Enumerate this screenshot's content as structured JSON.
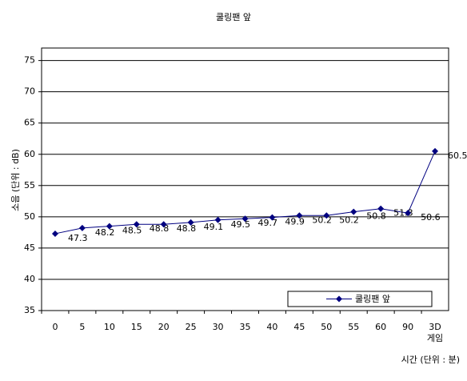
{
  "chart_data": {
    "type": "line",
    "title": "쿨링팬 앞",
    "ylabel": "소음 (단위 : dB)",
    "xlabel": "시간 (단위 : 분)",
    "categories": [
      "0",
      "5",
      "10",
      "15",
      "20",
      "25",
      "30",
      "35",
      "40",
      "45",
      "50",
      "55",
      "60",
      "90",
      "3D\n게임"
    ],
    "series": [
      {
        "name": "쿨링팬 앞",
        "color": "#000080",
        "values": [
          47.3,
          48.2,
          48.5,
          48.8,
          48.8,
          49.1,
          49.5,
          49.7,
          49.9,
          50.2,
          50.2,
          50.8,
          51.3,
          50.6,
          60.5
        ]
      }
    ],
    "ylim": [
      35,
      77
    ],
    "yticks": [
      35,
      40,
      45,
      50,
      55,
      60,
      65,
      70,
      75
    ],
    "grid": true,
    "legend": "lower right"
  }
}
